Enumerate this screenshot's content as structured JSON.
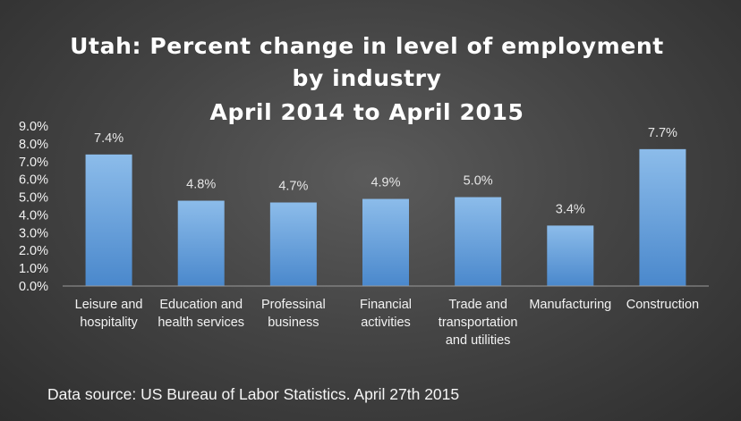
{
  "chart_data": {
    "type": "bar",
    "title_lines": [
      "Utah: Percent change in level of employment",
      "by industry",
      "April 2014 to April 2015"
    ],
    "categories": [
      [
        "Leisure and",
        "hospitality"
      ],
      [
        "Education and",
        "health services"
      ],
      [
        "Professinal",
        "business"
      ],
      [
        "Financial",
        "activities"
      ],
      [
        "Trade and",
        "transportation",
        "and utilities"
      ],
      [
        "Manufacturing"
      ],
      [
        "Construction"
      ]
    ],
    "values": [
      7.4,
      4.8,
      4.7,
      4.9,
      5.0,
      3.4,
      7.7
    ],
    "data_labels": [
      "7.4%",
      "4.8%",
      "4.7%",
      "4.9%",
      "5.0%",
      "3.4%",
      "7.7%"
    ],
    "y_ticks": [
      "0.0%",
      "1.0%",
      "2.0%",
      "3.0%",
      "4.0%",
      "5.0%",
      "6.0%",
      "7.0%",
      "8.0%",
      "9.0%"
    ],
    "ylim": [
      0,
      9
    ],
    "xlabel": "",
    "ylabel": "",
    "grid": false,
    "legend": "none",
    "source": "Data source: US Bureau of Labor Statistics. April 27th 2015",
    "colors": {
      "bar_top": "#8cbcea",
      "bar_bottom": "#4a88cc",
      "text": "#ffffff",
      "axis": "#9a9a9a"
    }
  }
}
